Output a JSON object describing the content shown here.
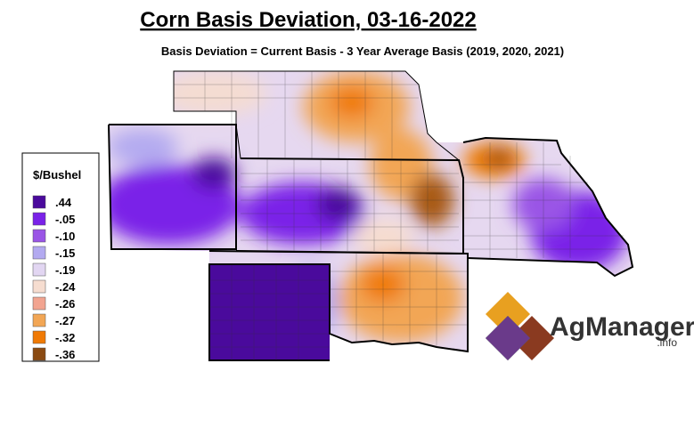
{
  "title": "Corn Basis Deviation, 03-16-2022",
  "subtitle": "Basis Deviation = Current Basis - 3 Year Average Basis (2019, 2020, 2021)",
  "legend": {
    "title": "$/Bushel",
    "items": [
      {
        "label": ".44",
        "color": "#4a0a9c"
      },
      {
        "label": "-.05",
        "color": "#7a22e8"
      },
      {
        "label": "-.10",
        "color": "#9a55e6"
      },
      {
        "label": "-.15",
        "color": "#b3aaf0"
      },
      {
        "label": "-.19",
        "color": "#e2d6f2"
      },
      {
        "label": "-.24",
        "color": "#f6ddd0"
      },
      {
        "label": "-.26",
        "color": "#f2a490"
      },
      {
        "label": "-.27",
        "color": "#f2a655"
      },
      {
        "label": "-.32",
        "color": "#f07a05"
      },
      {
        "label": "-.36",
        "color": "#8a4a12"
      }
    ]
  },
  "logo": {
    "name": "AgManager",
    "suffix": ".info"
  }
}
